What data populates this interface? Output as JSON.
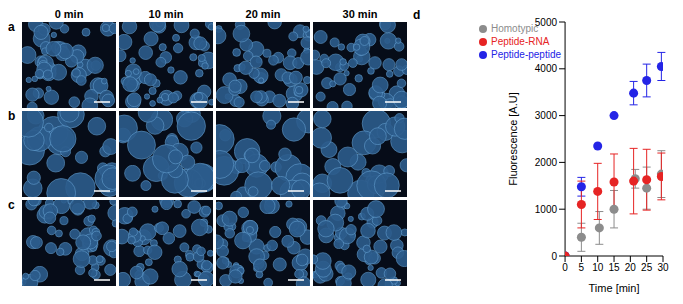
{
  "figure": {
    "panel_labels": [
      "a",
      "b",
      "c"
    ],
    "column_titles": [
      "0 min",
      "10 min",
      "20 min",
      "30 min"
    ]
  },
  "chart_data": {
    "type": "scatter",
    "title": "d",
    "x_label": "Time [min]",
    "y_label": "Fluorescence [A.U]",
    "xlim": [
      0,
      30
    ],
    "xticks": [
      0,
      5,
      10,
      15,
      20,
      25,
      30
    ],
    "ylim": [
      0,
      5000
    ],
    "yticks": [
      0,
      1000,
      2000,
      3000,
      4000,
      5000
    ],
    "legend": "top-left",
    "series": [
      {
        "name": "Homotypic",
        "color": "#8c8c8c",
        "marker": "circle",
        "x": [
          0,
          5,
          10.5,
          15,
          21.5,
          25,
          29.5
        ],
        "values": [
          0,
          400,
          600,
          1000,
          1650,
          1450,
          1750
        ],
        "errors": [
          0,
          300,
          350,
          400,
          200,
          450,
          500
        ]
      },
      {
        "name": "Peptide-peptide",
        "color": "#2424e6",
        "marker": "circle",
        "x": [
          0,
          5,
          10,
          15,
          21,
          25,
          29.5
        ],
        "values": [
          0,
          1480,
          2350,
          3000,
          3480,
          3750,
          4050
        ],
        "errors": [
          0,
          200,
          0,
          0,
          250,
          350,
          300
        ]
      },
      {
        "name": "Peptide-RNA",
        "color": "#e62424",
        "marker": "circle",
        "x": [
          0,
          5,
          10,
          15,
          21,
          25,
          29.5
        ],
        "values": [
          0,
          1100,
          1380,
          1580,
          1600,
          1630,
          1700
        ],
        "errors": [
          0,
          500,
          600,
          600,
          700,
          650,
          500
        ]
      }
    ]
  }
}
